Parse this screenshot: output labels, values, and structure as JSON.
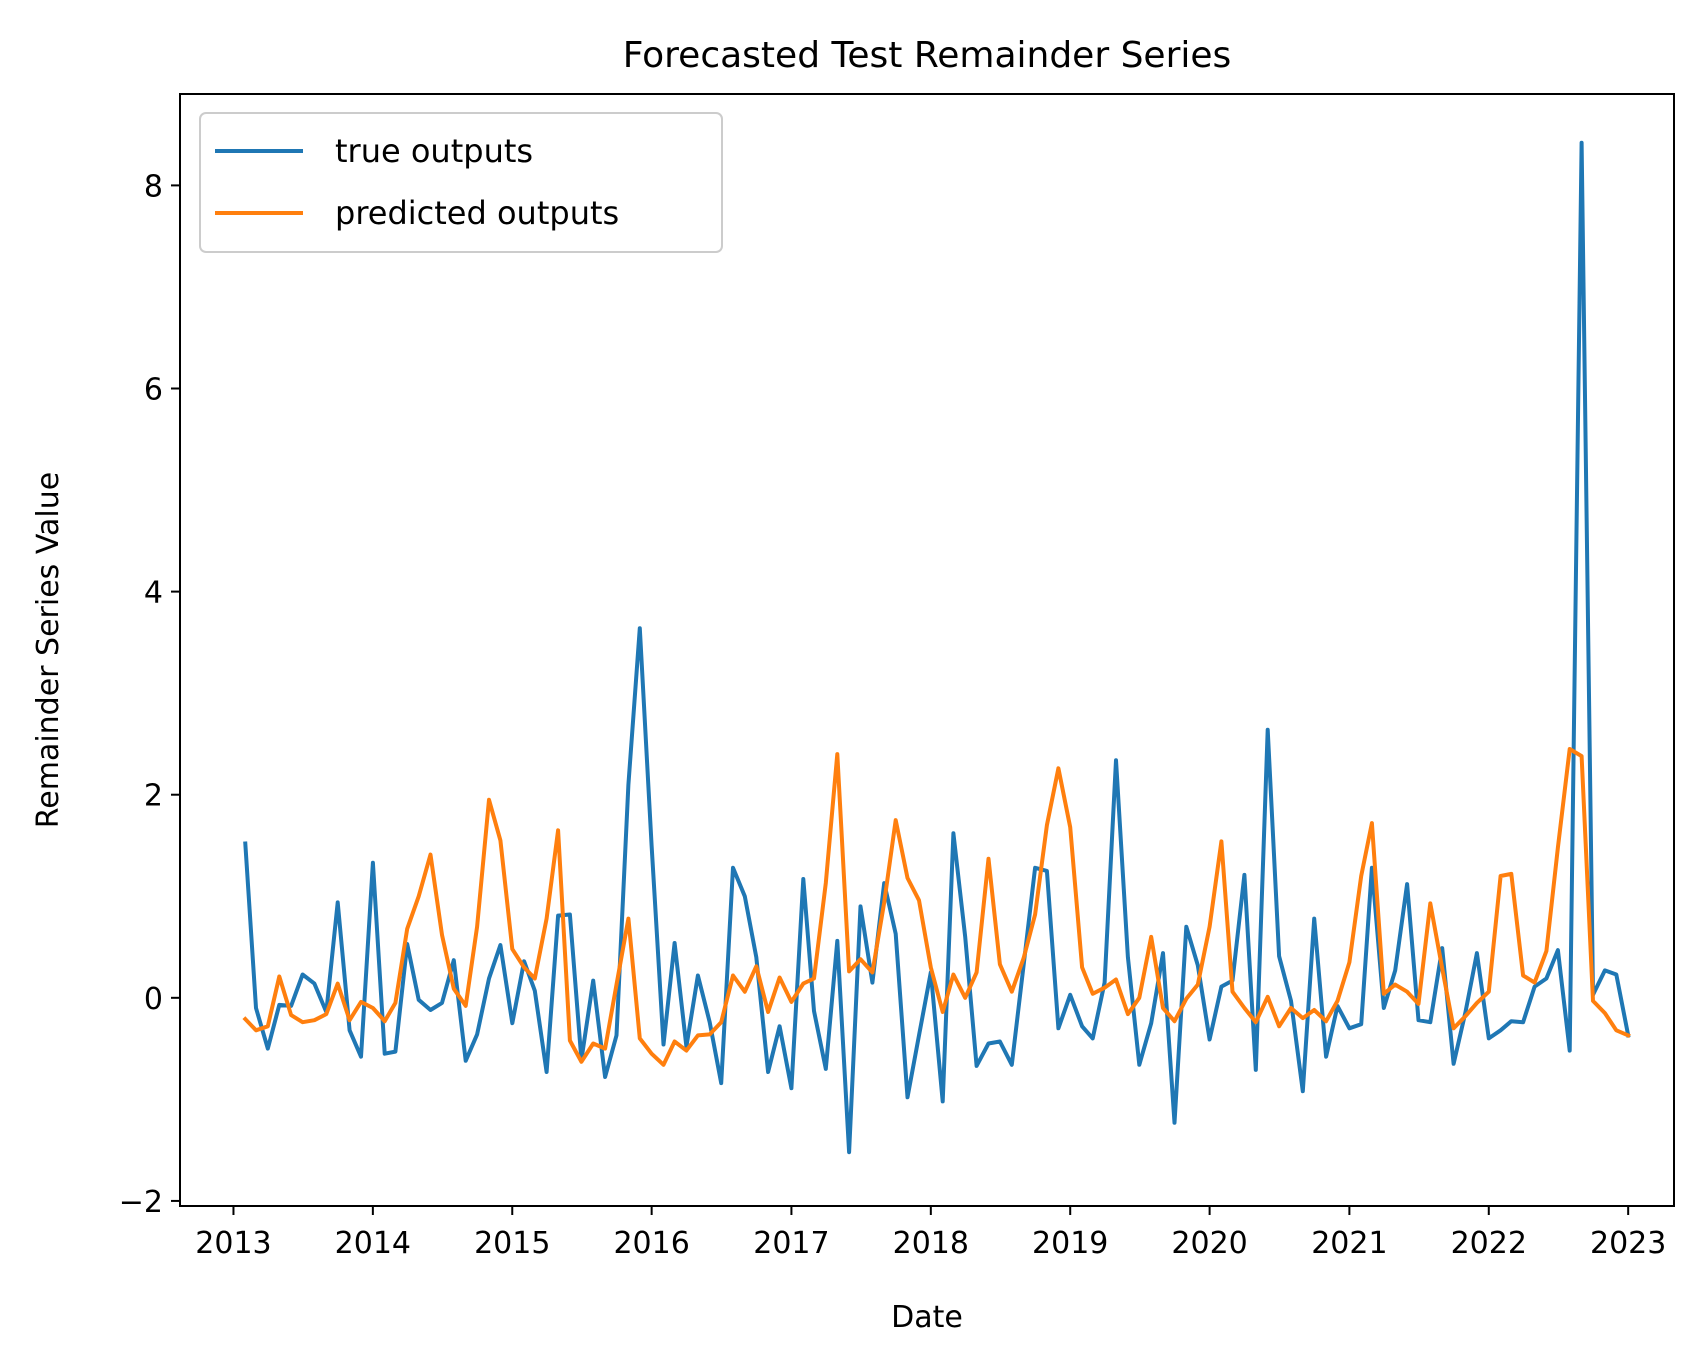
{
  "chart_data": {
    "type": "line",
    "title": "Forecasted Test Remainder Series",
    "xlabel": "Date",
    "ylabel": "Remainder Series Value",
    "x_ticks": [
      "2013",
      "2014",
      "2015",
      "2016",
      "2017",
      "2018",
      "2019",
      "2020",
      "2021",
      "2022",
      "2023"
    ],
    "y_ticks": [
      "−2",
      "0",
      "2",
      "4",
      "6",
      "8"
    ],
    "xlim": [
      "2012-08-14",
      "2023-05-01"
    ],
    "ylim": [
      -2.05,
      8.9
    ],
    "x_start": "2013-02",
    "x_interval": "monthly",
    "grid": false,
    "legend_position": "upper-left",
    "series": [
      {
        "name": "true outputs",
        "color": "#1f77b4",
        "values": [
          1.52,
          -0.1,
          -0.5,
          -0.07,
          -0.08,
          0.23,
          0.14,
          -0.14,
          0.94,
          -0.32,
          -0.58,
          1.33,
          -0.55,
          -0.53,
          0.53,
          -0.02,
          -0.12,
          -0.05,
          0.37,
          -0.62,
          -0.36,
          0.19,
          0.52,
          -0.25,
          0.36,
          0.07,
          -0.73,
          0.81,
          0.82,
          -0.61,
          0.17,
          -0.78,
          -0.37,
          2.1,
          3.64,
          1.5,
          -0.46,
          0.54,
          -0.48,
          0.22,
          -0.24,
          -0.84,
          1.28,
          1.0,
          0.4,
          -0.73,
          -0.28,
          -0.89,
          1.17,
          -0.13,
          -0.7,
          0.56,
          -1.52,
          0.9,
          0.15,
          1.13,
          0.63,
          -0.98,
          -0.37,
          0.25,
          -1.02,
          1.62,
          0.6,
          -0.67,
          -0.45,
          -0.43,
          -0.66,
          0.32,
          1.28,
          1.25,
          -0.3,
          0.03,
          -0.28,
          -0.4,
          0.15,
          2.34,
          0.4,
          -0.66,
          -0.25,
          0.44,
          -1.23,
          0.7,
          0.32,
          -0.41,
          0.11,
          0.17,
          1.21,
          -0.71,
          2.64,
          0.41,
          -0.03,
          -0.92,
          0.78,
          -0.58,
          -0.08,
          -0.3,
          -0.26,
          1.28,
          -0.1,
          0.27,
          1.12,
          -0.22,
          -0.24,
          0.49,
          -0.65,
          -0.14,
          0.44,
          -0.4,
          -0.32,
          -0.23,
          -0.24,
          0.11,
          0.19,
          0.47,
          -0.52,
          8.42,
          0.03,
          0.27,
          0.23,
          -0.37
        ]
      },
      {
        "name": "predicted outputs",
        "color": "#ff7f0e",
        "values": [
          -0.21,
          -0.32,
          -0.28,
          0.21,
          -0.17,
          -0.24,
          -0.22,
          -0.16,
          0.14,
          -0.22,
          -0.04,
          -0.1,
          -0.23,
          -0.05,
          0.68,
          1.0,
          1.41,
          0.62,
          0.09,
          -0.08,
          0.7,
          1.95,
          1.55,
          0.48,
          0.3,
          0.19,
          0.78,
          1.65,
          -0.42,
          -0.63,
          -0.45,
          -0.5,
          0.13,
          0.78,
          -0.4,
          -0.55,
          -0.66,
          -0.43,
          -0.52,
          -0.37,
          -0.36,
          -0.24,
          0.22,
          0.06,
          0.31,
          -0.14,
          0.2,
          -0.04,
          0.14,
          0.19,
          1.13,
          2.4,
          0.26,
          0.38,
          0.25,
          0.94,
          1.75,
          1.18,
          0.96,
          0.3,
          -0.14,
          0.23,
          0.0,
          0.25,
          1.37,
          0.33,
          0.06,
          0.39,
          0.82,
          1.7,
          2.26,
          1.68,
          0.3,
          0.04,
          0.1,
          0.18,
          -0.16,
          0.0,
          0.6,
          -0.1,
          -0.23,
          -0.01,
          0.13,
          0.7,
          1.54,
          0.06,
          -0.1,
          -0.24,
          0.01,
          -0.28,
          -0.1,
          -0.2,
          -0.12,
          -0.23,
          -0.03,
          0.35,
          1.2,
          1.72,
          0.04,
          0.13,
          0.06,
          -0.06,
          0.93,
          0.29,
          -0.3,
          -0.18,
          -0.05,
          0.06,
          1.2,
          1.22,
          0.22,
          0.15,
          0.46,
          1.48,
          2.45,
          2.38,
          -0.03,
          -0.15,
          -0.32,
          -0.37
        ]
      }
    ]
  }
}
